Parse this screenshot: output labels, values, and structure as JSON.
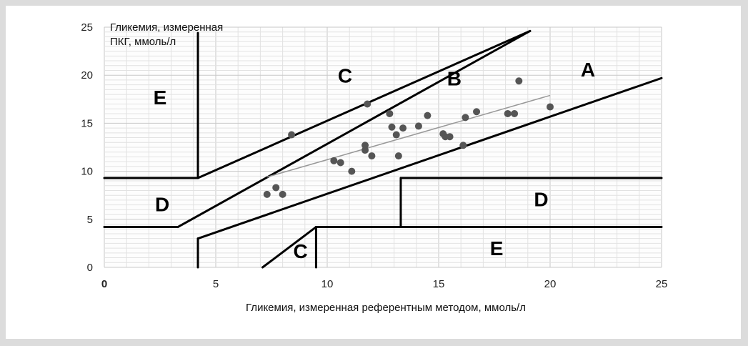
{
  "chart_data": {
    "type": "scatter",
    "title": "",
    "ylabel_lines": [
      "Гликемия, измеренная",
      "ПКГ, ммоль/л"
    ],
    "xlabel": "Гликемия, измеренная референтным методом, ммоль/л",
    "xlim": [
      0,
      25
    ],
    "ylim": [
      0,
      25
    ],
    "x_ticks": [
      "0",
      "5",
      "10",
      "15",
      "20",
      "25"
    ],
    "y_ticks": [
      "0",
      "5",
      "10",
      "15",
      "20",
      "25"
    ],
    "grid": true,
    "zone_labels": [
      {
        "text": "A",
        "x": 21.7,
        "y": 20.4
      },
      {
        "text": "B",
        "x": 15.7,
        "y": 19.5
      },
      {
        "text": "C",
        "x": 10.8,
        "y": 19.8
      },
      {
        "text": "C",
        "x": 8.8,
        "y": 1.5
      },
      {
        "text": "D",
        "x": 2.6,
        "y": 6.4
      },
      {
        "text": "D",
        "x": 19.6,
        "y": 6.9
      },
      {
        "text": "E",
        "x": 2.5,
        "y": 17.5
      },
      {
        "text": "E",
        "x": 17.6,
        "y": 1.8
      }
    ],
    "zone_boundaries": [
      [
        [
          4.2,
          24.4
        ],
        [
          4.2,
          9.3
        ]
      ],
      [
        [
          4.2,
          9.3
        ],
        [
          0,
          9.3
        ]
      ],
      [
        [
          4.2,
          9.3
        ],
        [
          19.1,
          24.6
        ]
      ],
      [
        [
          3.3,
          4.2
        ],
        [
          19.1,
          24.6
        ]
      ],
      [
        [
          0,
          4.2
        ],
        [
          3.3,
          4.2
        ]
      ],
      [
        [
          4.2,
          3.0
        ],
        [
          25,
          19.7
        ]
      ],
      [
        [
          4.2,
          3.0
        ],
        [
          4.2,
          0
        ]
      ],
      [
        [
          7.1,
          0
        ],
        [
          9.5,
          4.2
        ]
      ],
      [
        [
          9.5,
          4.2
        ],
        [
          9.5,
          0
        ]
      ],
      [
        [
          9.5,
          4.2
        ],
        [
          25,
          4.2
        ]
      ],
      [
        [
          13.3,
          4.2
        ],
        [
          13.3,
          9.3
        ]
      ],
      [
        [
          13.3,
          9.3
        ],
        [
          25,
          9.3
        ]
      ]
    ],
    "points": [
      {
        "x": 7.3,
        "y": 7.6
      },
      {
        "x": 7.7,
        "y": 8.3
      },
      {
        "x": 8.0,
        "y": 7.6
      },
      {
        "x": 8.4,
        "y": 13.8
      },
      {
        "x": 10.3,
        "y": 11.1
      },
      {
        "x": 10.6,
        "y": 10.9
      },
      {
        "x": 11.1,
        "y": 10.0
      },
      {
        "x": 11.7,
        "y": 12.7
      },
      {
        "x": 11.7,
        "y": 12.2
      },
      {
        "x": 11.8,
        "y": 17.0
      },
      {
        "x": 12.0,
        "y": 11.6
      },
      {
        "x": 12.8,
        "y": 16.0
      },
      {
        "x": 12.9,
        "y": 14.6
      },
      {
        "x": 13.1,
        "y": 13.8
      },
      {
        "x": 13.2,
        "y": 11.6
      },
      {
        "x": 13.4,
        "y": 14.5
      },
      {
        "x": 14.1,
        "y": 14.7
      },
      {
        "x": 14.5,
        "y": 15.8
      },
      {
        "x": 15.2,
        "y": 13.9
      },
      {
        "x": 15.3,
        "y": 13.6
      },
      {
        "x": 15.5,
        "y": 13.6
      },
      {
        "x": 16.1,
        "y": 12.7
      },
      {
        "x": 16.2,
        "y": 15.6
      },
      {
        "x": 16.7,
        "y": 16.2
      },
      {
        "x": 18.1,
        "y": 16.0
      },
      {
        "x": 18.4,
        "y": 16.0
      },
      {
        "x": 18.6,
        "y": 19.4
      },
      {
        "x": 20.0,
        "y": 16.7
      }
    ],
    "trend_line": [
      [
        7.3,
        9.4
      ],
      [
        20.0,
        17.9
      ]
    ],
    "colors": {
      "points": "#555555",
      "trend": "#999999",
      "grid_major": "#c8c8c8",
      "grid_minor": "#e2e2e2",
      "boundary": "#000000"
    }
  }
}
